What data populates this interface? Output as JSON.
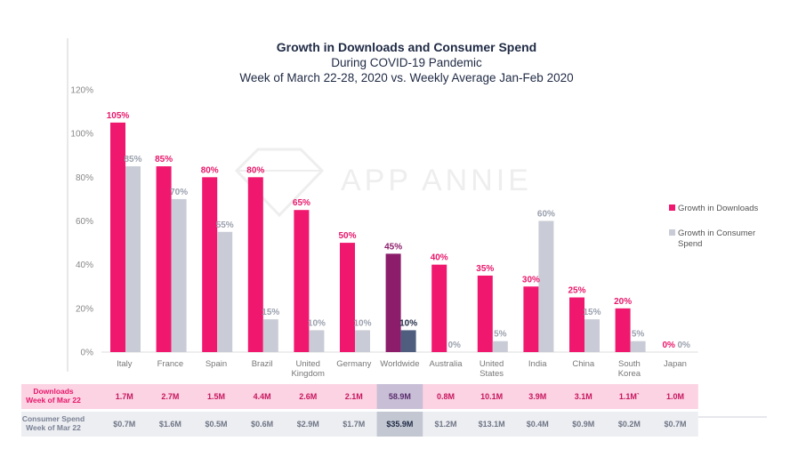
{
  "chart_data": {
    "type": "bar",
    "title": "Growth in Downloads and Consumer Spend",
    "subtitle_lines": [
      "During COVID-19 Pandemic",
      "Week of March 22-28, 2020 vs. Weekly Average Jan-Feb 2020"
    ],
    "watermark": "APP ANNIE",
    "categories": [
      [
        "Italy"
      ],
      [
        "France"
      ],
      [
        "Spain"
      ],
      [
        "Brazil"
      ],
      [
        "United",
        "Kingdom"
      ],
      [
        "Germany"
      ],
      [
        "Worldwide"
      ],
      [
        "Australia"
      ],
      [
        "United",
        "States"
      ],
      [
        "India"
      ],
      [
        "China"
      ],
      [
        "South",
        "Korea"
      ],
      [
        "Japan"
      ]
    ],
    "ylim": [
      0,
      120
    ],
    "yticks": [
      0,
      20,
      40,
      60,
      80,
      100,
      120
    ],
    "ytick_labels": [
      "0%",
      "20%",
      "40%",
      "60%",
      "80%",
      "100%",
      "120%"
    ],
    "grid": false,
    "legend_position": "right",
    "highlight_category_index": 6,
    "series": [
      {
        "name": "Growth in Downloads",
        "values": [
          105,
          85,
          80,
          80,
          65,
          50,
          45,
          40,
          35,
          30,
          25,
          20,
          0
        ],
        "labels": [
          "105%",
          "85%",
          "80%",
          "80%",
          "65%",
          "50%",
          "45%",
          "40%",
          "35%",
          "30%",
          "25%",
          "20%",
          "0%"
        ],
        "color": "#f0186e",
        "highlight_color": "#8b1d6a"
      },
      {
        "name": "Growth in Consumer Spend",
        "legend_lines": [
          "Growth in Consumer",
          "Spend"
        ],
        "values": [
          85,
          70,
          55,
          15,
          10,
          10,
          10,
          0,
          5,
          60,
          15,
          5,
          0
        ],
        "labels": [
          "85%",
          "70%",
          "55%",
          "15%",
          "10%",
          "10%",
          "10%",
          "0%",
          "5%",
          "60%",
          "15%",
          "5%",
          "0%"
        ],
        "color": "#c9ccd6",
        "highlight_color": "#4f5e7e"
      }
    ]
  },
  "table": {
    "rows": [
      {
        "label": [
          "Downloads",
          "Week of Mar 22"
        ],
        "values": [
          "1.7M",
          "2.7M",
          "1.5M",
          "4.4M",
          "2.6M",
          "2.1M",
          "58.9M",
          "0.8M",
          "10.1M",
          "3.9M",
          "3.1M",
          "1.1M`",
          "1.0M"
        ],
        "bg_color": "#fbd3e3",
        "highlight_bg": "#c8bfd6",
        "label_color": "#e8176b",
        "text_color": "#c8175f",
        "highlight_text_color": "#5a2d6e"
      },
      {
        "label": [
          "Consumer Spend",
          "Week of Mar 22"
        ],
        "values": [
          "$0.7M",
          "$1.6M",
          "$0.5M",
          "$0.6M",
          "$2.9M",
          "$1.7M",
          "$35.9M",
          "$1.2M",
          "$13.1M",
          "$0.4M",
          "$0.9M",
          "$0.2M",
          "$0.7M"
        ],
        "bg_color": "#eceef2",
        "highlight_bg": "#c2c7d2",
        "label_color": "#7a8194",
        "text_color": "#6f7585",
        "highlight_text_color": "#1f2a44"
      }
    ]
  }
}
